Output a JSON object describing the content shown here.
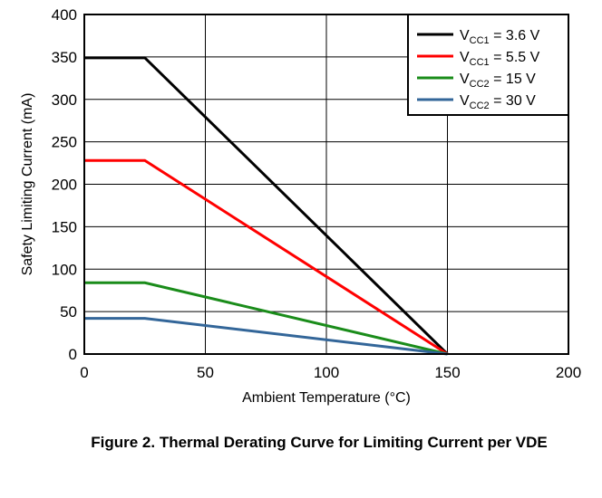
{
  "caption": "Figure 2. Thermal Derating Curve for Limiting Current per VDE",
  "chart_data": {
    "type": "line",
    "title": "",
    "xlabel": "Ambient Temperature (°C)",
    "ylabel": "Safety Limiting Current (mA)",
    "xlim": [
      0,
      200
    ],
    "ylim": [
      0,
      400
    ],
    "xticks": [
      "0",
      "50",
      "100",
      "150",
      "200"
    ],
    "yticks": [
      "0",
      "50",
      "100",
      "150",
      "200",
      "250",
      "300",
      "350",
      "400"
    ],
    "grid": true,
    "legend_position": "top-right",
    "series": [
      {
        "name": "VCC1 = 3.6 V",
        "name_parts": {
          "main": "V",
          "sub": "CC1",
          "rest": " = 3.6 V"
        },
        "color": "#000000",
        "x": [
          0,
          25,
          150
        ],
        "y": [
          349,
          349,
          0
        ]
      },
      {
        "name": "VCC1 = 5.5 V",
        "name_parts": {
          "main": "V",
          "sub": "CC1",
          "rest": " = 5.5 V"
        },
        "color": "#ff0000",
        "x": [
          0,
          25,
          150
        ],
        "y": [
          228,
          228,
          0
        ]
      },
      {
        "name": "VCC2 = 15 V",
        "name_parts": {
          "main": "V",
          "sub": "CC2",
          "rest": " = 15 V"
        },
        "color": "#1a8c1a",
        "x": [
          0,
          25,
          150
        ],
        "y": [
          84,
          84,
          0
        ]
      },
      {
        "name": "VCC2 = 30 V",
        "name_parts": {
          "main": "V",
          "sub": "CC2",
          "rest": " = 30 V"
        },
        "color": "#336699",
        "x": [
          0,
          25,
          150
        ],
        "y": [
          42,
          42,
          0
        ]
      }
    ]
  }
}
